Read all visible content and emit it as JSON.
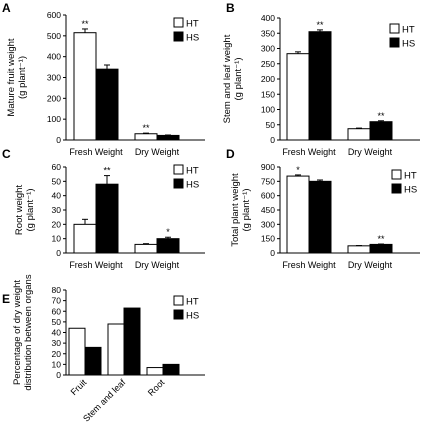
{
  "colors": {
    "HT": "#ffffff",
    "HS": "#000000",
    "axis": "#000000"
  },
  "chart_data": [
    {
      "panel": "A",
      "type": "bar",
      "ylabel_lines": [
        "Mature fruit weight",
        "(g plant⁻¹)"
      ],
      "ylim": [
        0,
        600
      ],
      "yticks": [
        0,
        100,
        200,
        300,
        400,
        500,
        600
      ],
      "categories": [
        "Fresh Weight",
        "Dry Weight"
      ],
      "series": [
        {
          "name": "HT",
          "values": [
            515,
            30
          ],
          "errors": [
            18,
            3
          ]
        },
        {
          "name": "HS",
          "values": [
            340,
            22
          ],
          "errors": [
            20,
            2
          ]
        }
      ],
      "annotations": [
        {
          "series": "HT",
          "category": 0,
          "text": "**"
        },
        {
          "series": "HT",
          "category": 1,
          "text": "**"
        }
      ],
      "legend": "top-right"
    },
    {
      "panel": "B",
      "type": "bar",
      "ylabel_lines": [
        "Stem and leaf weight",
        "(g plant⁻¹)"
      ],
      "ylim": [
        0,
        400
      ],
      "yticks": [
        0,
        50,
        100,
        150,
        200,
        250,
        300,
        350,
        400
      ],
      "categories": [
        "Fresh Weight",
        "Dry Weight"
      ],
      "series": [
        {
          "name": "HT",
          "values": [
            283,
            37
          ],
          "errors": [
            6,
            2
          ]
        },
        {
          "name": "HS",
          "values": [
            355,
            60
          ],
          "errors": [
            6,
            3
          ]
        }
      ],
      "annotations": [
        {
          "series": "HS",
          "category": 0,
          "text": "**"
        },
        {
          "series": "HS",
          "category": 1,
          "text": "**"
        }
      ],
      "legend": "top-right"
    },
    {
      "panel": "C",
      "type": "bar",
      "ylabel_lines": [
        "Root weight",
        "(g plant⁻¹)"
      ],
      "ylim": [
        0,
        60
      ],
      "yticks": [
        0,
        10,
        20,
        30,
        40,
        50,
        60
      ],
      "categories": [
        "Fresh Weight",
        "Dry Weight"
      ],
      "series": [
        {
          "name": "HT",
          "values": [
            20,
            6
          ],
          "errors": [
            3.5,
            0.5
          ]
        },
        {
          "name": "HS",
          "values": [
            48,
            10
          ],
          "errors": [
            6,
            1
          ]
        }
      ],
      "annotations": [
        {
          "series": "HS",
          "category": 0,
          "text": "**"
        },
        {
          "series": "HS",
          "category": 1,
          "text": "*"
        }
      ],
      "legend": "top-right"
    },
    {
      "panel": "D",
      "type": "bar",
      "ylabel_lines": [
        "Total plant weight",
        "(g plant⁻¹)"
      ],
      "ylim": [
        0,
        900
      ],
      "yticks": [
        0,
        150,
        300,
        450,
        600,
        750,
        900
      ],
      "categories": [
        "Fresh Weight",
        "Dry Weight"
      ],
      "series": [
        {
          "name": "HT",
          "values": [
            805,
            75
          ],
          "errors": [
            12,
            3
          ]
        },
        {
          "name": "HS",
          "values": [
            750,
            90
          ],
          "errors": [
            14,
            4
          ]
        }
      ],
      "annotations": [
        {
          "series": "HT",
          "category": 0,
          "text": "*"
        },
        {
          "series": "HS",
          "category": 1,
          "text": "**"
        }
      ],
      "legend": "top-right"
    },
    {
      "panel": "E",
      "type": "bar",
      "ylabel_lines": [
        "Percentage of dry weight",
        "distribution between organs"
      ],
      "ylim": [
        0,
        80
      ],
      "yticks": [
        0,
        10,
        20,
        30,
        40,
        50,
        60,
        70,
        80
      ],
      "categories": [
        "Fruit",
        "Stem and leaf",
        "Root"
      ],
      "rotate_xlabels": true,
      "series": [
        {
          "name": "HT",
          "values": [
            44,
            48,
            7
          ]
        },
        {
          "name": "HS",
          "values": [
            26,
            63,
            10
          ]
        }
      ],
      "annotations": [],
      "legend": "top-right"
    }
  ]
}
